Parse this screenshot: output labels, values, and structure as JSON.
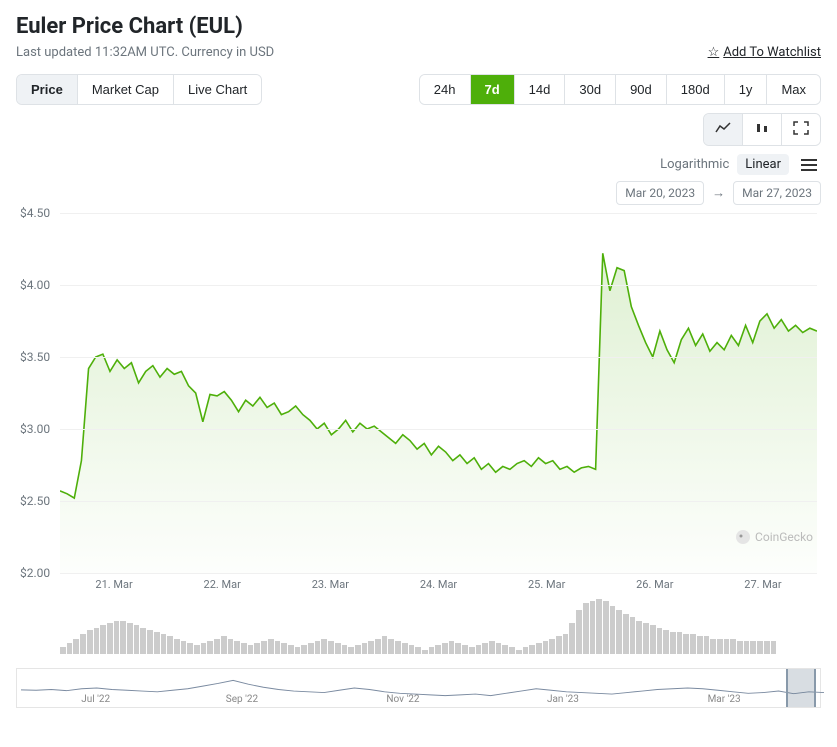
{
  "header": {
    "title": "Euler Price Chart (EUL)",
    "updated": "Last updated 11:32AM UTC. Currency in USD",
    "watchlist": "Add To Watchlist"
  },
  "tabs": {
    "views": [
      "Price",
      "Market Cap",
      "Live Chart"
    ],
    "selected_view": "Price",
    "ranges": [
      "24h",
      "7d",
      "14d",
      "30d",
      "90d",
      "180d",
      "1y",
      "Max"
    ],
    "selected_range": "7d",
    "scale": {
      "log": "Logarithmic",
      "lin": "Linear",
      "selected": "Linear"
    },
    "date_from": "Mar 20, 2023",
    "date_to": "Mar 27, 2023"
  },
  "watermark": "CoinGecko",
  "chart": {
    "type": "area",
    "line_color": "#4eaf0a",
    "fill_from": "rgba(78,175,10,0.18)",
    "fill_to": "rgba(78,175,10,0.01)",
    "grid_color": "#f0f0f0",
    "ymin": 2.0,
    "ymax": 4.5,
    "ystep": 0.5,
    "yticks": [
      {
        "v": 4.5,
        "l": "$4.50"
      },
      {
        "v": 4.0,
        "l": "$4.00"
      },
      {
        "v": 3.5,
        "l": "$3.50"
      },
      {
        "v": 3.0,
        "l": "$3.00"
      },
      {
        "v": 2.5,
        "l": "$2.50"
      },
      {
        "v": 2.0,
        "l": "$2.00"
      }
    ],
    "xticks": [
      "21. Mar",
      "22. Mar",
      "23. Mar",
      "24. Mar",
      "25. Mar",
      "26. Mar",
      "27. Mar"
    ],
    "series": [
      2.57,
      2.55,
      2.52,
      2.78,
      3.42,
      3.5,
      3.52,
      3.4,
      3.48,
      3.42,
      3.46,
      3.32,
      3.4,
      3.44,
      3.36,
      3.42,
      3.38,
      3.4,
      3.3,
      3.25,
      3.05,
      3.24,
      3.23,
      3.26,
      3.2,
      3.12,
      3.2,
      3.16,
      3.22,
      3.15,
      3.18,
      3.1,
      3.12,
      3.16,
      3.1,
      3.06,
      3.0,
      3.04,
      2.96,
      3.0,
      3.06,
      2.98,
      3.04,
      3.0,
      3.02,
      2.98,
      2.94,
      2.9,
      2.96,
      2.92,
      2.86,
      2.9,
      2.82,
      2.88,
      2.84,
      2.78,
      2.82,
      2.76,
      2.8,
      2.72,
      2.76,
      2.7,
      2.74,
      2.72,
      2.76,
      2.78,
      2.74,
      2.8,
      2.76,
      2.78,
      2.72,
      2.74,
      2.7,
      2.73,
      2.74,
      2.72,
      4.22,
      3.96,
      4.12,
      4.1,
      3.85,
      3.72,
      3.6,
      3.5,
      3.68,
      3.55,
      3.46,
      3.62,
      3.7,
      3.58,
      3.66,
      3.54,
      3.6,
      3.55,
      3.65,
      3.58,
      3.72,
      3.6,
      3.75,
      3.8,
      3.7,
      3.76,
      3.68,
      3.72,
      3.67,
      3.7,
      3.68
    ],
    "volume": [
      6,
      10,
      14,
      18,
      22,
      24,
      26,
      28,
      30,
      30,
      28,
      26,
      24,
      22,
      20,
      18,
      16,
      14,
      12,
      10,
      8,
      10,
      12,
      14,
      16,
      14,
      12,
      10,
      8,
      10,
      12,
      14,
      12,
      10,
      8,
      6,
      8,
      10,
      12,
      14,
      12,
      10,
      8,
      6,
      8,
      10,
      12,
      14,
      16,
      14,
      12,
      10,
      8,
      6,
      4,
      6,
      8,
      10,
      12,
      10,
      8,
      6,
      8,
      10,
      12,
      10,
      8,
      6,
      4,
      6,
      8,
      10,
      12,
      14,
      16,
      18,
      28,
      40,
      46,
      48,
      50,
      48,
      44,
      40,
      36,
      34,
      30,
      28,
      26,
      24,
      22,
      20,
      20,
      18,
      18,
      16,
      16,
      14,
      14,
      14,
      14,
      12,
      12,
      12,
      12,
      12,
      12
    ]
  },
  "nav": {
    "labels": [
      {
        "t": "Jul '22",
        "x": 8
      },
      {
        "t": "Sep '22",
        "x": 26
      },
      {
        "t": "Nov '22",
        "x": 46
      },
      {
        "t": "Jan '23",
        "x": 66
      },
      {
        "t": "Mar '23",
        "x": 86
      }
    ],
    "line_color": "#7a8aa0",
    "series": [
      0.45,
      0.44,
      0.46,
      0.43,
      0.48,
      0.5,
      0.46,
      0.44,
      0.42,
      0.4,
      0.44,
      0.48,
      0.55,
      0.62,
      0.7,
      0.6,
      0.52,
      0.46,
      0.42,
      0.4,
      0.38,
      0.44,
      0.5,
      0.46,
      0.4,
      0.36,
      0.34,
      0.32,
      0.3,
      0.32,
      0.34,
      0.3,
      0.36,
      0.42,
      0.48,
      0.44,
      0.4,
      0.38,
      0.36,
      0.34,
      0.38,
      0.42,
      0.46,
      0.48,
      0.5,
      0.48,
      0.44,
      0.4,
      0.36,
      0.38,
      0.42,
      0.35,
      0.4,
      0.38
    ]
  }
}
